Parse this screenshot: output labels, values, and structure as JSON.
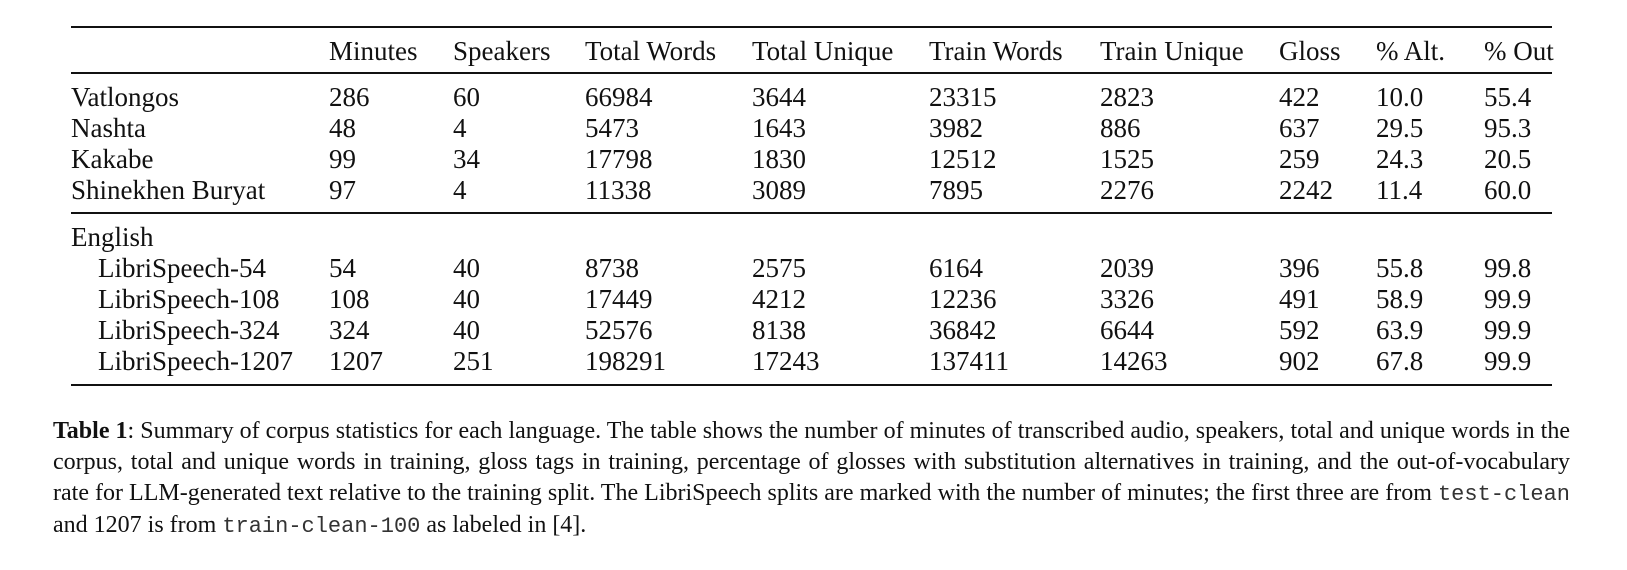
{
  "table": {
    "headers": [
      "",
      "Minutes",
      "Speakers",
      "Total Words",
      "Total Unique",
      "Train Words",
      "Train Unique",
      "Gloss",
      "% Alt.",
      "% Out"
    ],
    "group1": [
      [
        "Vatlongos",
        "286",
        "60",
        "66984",
        "3644",
        "23315",
        "2823",
        "422",
        "10.0",
        "55.4"
      ],
      [
        "Nashta",
        "48",
        "4",
        "5473",
        "1643",
        "3982",
        "886",
        "637",
        "29.5",
        "95.3"
      ],
      [
        "Kakabe",
        "99",
        "34",
        "17798",
        "1830",
        "12512",
        "1525",
        "259",
        "24.3",
        "20.5"
      ],
      [
        "Shinekhen Buryat",
        "97",
        "4",
        "11338",
        "3089",
        "7895",
        "2276",
        "2242",
        "11.4",
        "60.0"
      ]
    ],
    "group2_label": "English",
    "group2": [
      [
        "LibriSpeech-54",
        "54",
        "40",
        "8738",
        "2575",
        "6164",
        "2039",
        "396",
        "55.8",
        "99.8"
      ],
      [
        "LibriSpeech-108",
        "108",
        "40",
        "17449",
        "4212",
        "12236",
        "3326",
        "491",
        "58.9",
        "99.9"
      ],
      [
        "LibriSpeech-324",
        "324",
        "40",
        "52576",
        "8138",
        "36842",
        "6644",
        "592",
        "63.9",
        "99.9"
      ],
      [
        "LibriSpeech-1207",
        "1207",
        "251",
        "198291",
        "17243",
        "137411",
        "14263",
        "902",
        "67.8",
        "99.9"
      ]
    ]
  },
  "caption": {
    "label": "Table 1",
    "text1": ": Summary of corpus statistics for each language.  The table shows the number of minutes of transcribed audio, speakers, total and unique words in the corpus, total and unique words in training, gloss tags in training, percentage of glosses with substitution alternatives in training, and the out-of-vocabulary rate for LLM-generated text relative to the training split.  The LibriSpeech splits are marked with the number of minutes; the first three are from ",
    "code1": "test-clean",
    "text2": " and 1207 is from ",
    "code2": "train-clean-100",
    "text3": " as labeled in [4]."
  }
}
